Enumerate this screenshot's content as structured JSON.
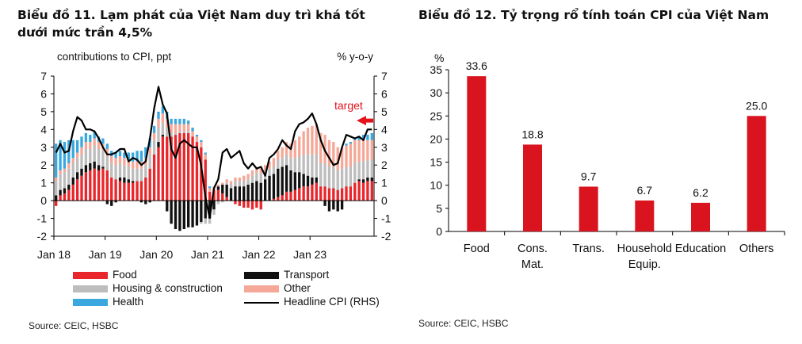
{
  "chart1": {
    "title": "Biểu đồ 11. Lạm phát của Việt Nam duy trì khá tốt dưới mức trần 4,5%",
    "left_axis_label": "contributions  to CPI, ppt",
    "right_axis_label": "% y-o-y",
    "target_label": "target",
    "source": "Source: CEIC, HSBC",
    "colors": {
      "food": "#e8262b",
      "transport": "#111111",
      "housing": "#bdbdbd",
      "other": "#f5a898",
      "health": "#3aa7df",
      "headline": "#000000",
      "target_arrow": "#e3121b"
    },
    "legend": [
      {
        "key": "food",
        "label": "Food"
      },
      {
        "key": "transport",
        "label": "Transport"
      },
      {
        "key": "housing",
        "label": "Housing & construction"
      },
      {
        "key": "other",
        "label": "Other"
      },
      {
        "key": "health",
        "label": "Health"
      },
      {
        "key": "headline",
        "label": "Headline CPI (RHS)"
      }
    ]
  },
  "chart2": {
    "title": "Biểu đồ 12. Tỷ trọng rổ tính toán CPI của Việt Nam",
    "source": "Source: CEIC, HSBC",
    "bar_color": "#d9141e"
  },
  "chart_data": [
    {
      "type": "bar",
      "subtype": "stacked bar + line",
      "title": "Biểu đồ 11. Lạm phát của Việt Nam duy trì khá tốt dưới mức trần 4,5%",
      "ylabel": "contributions  to CPI, ppt",
      "y2label": "% y-o-y",
      "ylim": [
        -2,
        7
      ],
      "y2lim": [
        -2,
        7
      ],
      "yticks": [
        "-2",
        "-1",
        "0",
        "1",
        "2",
        "3",
        "4",
        "5",
        "6",
        "7"
      ],
      "x_tick_labels": [
        "Jan 18",
        "Jan 19",
        "Jan 20",
        "Jan 21",
        "Jan 22",
        "Jan 23"
      ],
      "annotation": {
        "text": "target",
        "value": 4.5
      },
      "x": [
        "2018-01",
        "2018-02",
        "2018-03",
        "2018-04",
        "2018-05",
        "2018-06",
        "2018-07",
        "2018-08",
        "2018-09",
        "2018-10",
        "2018-11",
        "2018-12",
        "2019-01",
        "2019-02",
        "2019-03",
        "2019-04",
        "2019-05",
        "2019-06",
        "2019-07",
        "2019-08",
        "2019-09",
        "2019-10",
        "2019-11",
        "2019-12",
        "2020-01",
        "2020-02",
        "2020-03",
        "2020-04",
        "2020-05",
        "2020-06",
        "2020-07",
        "2020-08",
        "2020-09",
        "2020-10",
        "2020-11",
        "2020-12",
        "2021-01",
        "2021-02",
        "2021-03",
        "2021-04",
        "2021-05",
        "2021-06",
        "2021-07",
        "2021-08",
        "2021-09",
        "2021-10",
        "2021-11",
        "2021-12",
        "2022-01",
        "2022-02",
        "2022-03",
        "2022-04",
        "2022-05",
        "2022-06",
        "2022-07",
        "2022-08",
        "2022-09",
        "2022-10",
        "2022-11",
        "2022-12",
        "2023-01",
        "2023-02",
        "2023-03",
        "2023-04",
        "2023-05",
        "2023-06",
        "2023-07",
        "2023-08",
        "2023-09",
        "2023-10",
        "2023-11",
        "2023-12",
        "2024-01",
        "2024-02",
        "2024-03"
      ],
      "series": [
        {
          "name": "Food",
          "values": [
            -0.3,
            0.3,
            0.4,
            0.6,
            0.9,
            1.2,
            1.4,
            1.6,
            1.7,
            1.8,
            1.7,
            1.8,
            1.7,
            1.3,
            1.2,
            1.1,
            1.0,
            1.0,
            1.0,
            1.1,
            1.1,
            1.3,
            1.8,
            2.6,
            3.0,
            3.6,
            3.6,
            3.6,
            3.7,
            3.8,
            3.8,
            3.8,
            3.6,
            3.3,
            3.0,
            2.3,
            0.5,
            0.6,
            0.6,
            0.4,
            0.2,
            0.0,
            -0.2,
            -0.3,
            -0.4,
            -0.4,
            -0.5,
            -0.4,
            -0.5,
            0.0,
            0.0,
            0.1,
            0.2,
            0.3,
            0.5,
            0.5,
            0.6,
            0.7,
            0.8,
            0.8,
            0.9,
            1.0,
            0.8,
            0.8,
            0.7,
            0.7,
            0.6,
            0.7,
            0.8,
            0.8,
            1.0,
            1.1,
            1.0,
            1.1,
            1.1
          ]
        },
        {
          "name": "Transport",
          "values": [
            0.3,
            0.3,
            0.3,
            0.3,
            0.4,
            0.4,
            0.4,
            0.4,
            0.4,
            0.4,
            0.3,
            0.1,
            -0.2,
            -0.3,
            -0.1,
            0.2,
            0.3,
            0.2,
            0.1,
            0.0,
            -0.1,
            -0.2,
            -0.1,
            0.0,
            0.3,
            0.1,
            -0.6,
            -1.3,
            -1.6,
            -1.7,
            -1.6,
            -1.5,
            -1.5,
            -1.4,
            -1.2,
            -1.0,
            -1.0,
            -0.5,
            0.2,
            0.5,
            0.7,
            0.7,
            0.8,
            0.8,
            0.8,
            0.9,
            1.0,
            1.1,
            1.0,
            1.2,
            1.4,
            1.4,
            1.6,
            1.6,
            1.5,
            1.2,
            1.0,
            0.9,
            0.7,
            0.6,
            0.4,
            0.3,
            0.0,
            -0.3,
            -0.6,
            -0.5,
            -0.6,
            -0.5,
            0.0,
            0.0,
            0.0,
            0.1,
            0.2,
            0.2,
            0.2
          ]
        },
        {
          "name": "Housing & construction",
          "values": [
            0.8,
            0.9,
            0.9,
            0.9,
            0.8,
            0.8,
            0.8,
            0.9,
            0.8,
            0.9,
            0.9,
            0.9,
            0.8,
            0.8,
            0.8,
            0.8,
            0.7,
            0.7,
            0.7,
            0.7,
            0.7,
            0.7,
            0.8,
            0.8,
            0.8,
            0.7,
            0.5,
            0.2,
            0.1,
            0.1,
            0.1,
            0.1,
            0.0,
            0.0,
            -0.1,
            -0.3,
            -0.3,
            -0.3,
            -0.2,
            -0.1,
            0.1,
            0.2,
            0.3,
            0.3,
            0.3,
            0.3,
            0.4,
            0.5,
            0.5,
            0.5,
            0.4,
            0.4,
            0.5,
            0.5,
            0.6,
            0.7,
            0.8,
            0.9,
            1.1,
            1.2,
            1.3,
            1.3,
            1.3,
            1.3,
            1.2,
            1.2,
            1.1,
            1.1,
            1.1,
            1.1,
            1.1,
            1.0,
            1.0,
            1.0,
            1.0
          ]
        },
        {
          "name": "Other",
          "values": [
            0.2,
            0.2,
            0.2,
            0.3,
            0.3,
            0.3,
            0.4,
            0.4,
            0.4,
            0.4,
            0.4,
            0.4,
            0.4,
            0.4,
            0.4,
            0.4,
            0.4,
            0.4,
            0.4,
            0.4,
            0.4,
            0.4,
            0.4,
            0.4,
            0.5,
            0.5,
            0.5,
            0.5,
            0.5,
            0.4,
            0.4,
            0.4,
            0.3,
            0.3,
            0.3,
            0.3,
            0.2,
            0.2,
            0.1,
            0.1,
            0.2,
            0.2,
            0.2,
            0.2,
            0.3,
            0.3,
            0.3,
            0.3,
            0.3,
            0.3,
            0.4,
            0.5,
            0.5,
            0.6,
            0.7,
            0.8,
            1.0,
            1.1,
            1.3,
            1.5,
            1.6,
            1.7,
            1.7,
            1.6,
            1.5,
            1.4,
            1.3,
            1.2,
            1.2,
            1.3,
            1.3,
            1.2,
            1.2,
            1.1,
            1.1
          ]
        },
        {
          "name": "Health",
          "values": [
            1.9,
            1.7,
            1.5,
            1.3,
            1.0,
            0.7,
            0.6,
            0.5,
            0.4,
            0.4,
            0.3,
            0.3,
            0.3,
            0.3,
            0.3,
            0.3,
            0.3,
            0.4,
            0.5,
            0.6,
            0.6,
            0.6,
            0.5,
            0.4,
            0.4,
            0.4,
            0.4,
            0.3,
            0.3,
            0.3,
            0.3,
            0.2,
            0.2,
            0.1,
            0.1,
            0.1,
            0.1,
            0.0,
            0.0,
            0.0,
            0.0,
            0.0,
            0.0,
            0.0,
            0.0,
            0.0,
            0.0,
            0.0,
            0.0,
            0.0,
            0.0,
            0.0,
            0.0,
            0.0,
            0.0,
            0.0,
            0.0,
            0.0,
            0.0,
            0.0,
            0.0,
            0.0,
            0.0,
            0.0,
            0.0,
            0.0,
            0.0,
            0.0,
            0.1,
            0.1,
            0.1,
            0.2,
            0.3,
            0.3,
            0.4
          ]
        },
        {
          "name": "Headline CPI (RHS)",
          "type": "line",
          "values": [
            2.7,
            3.2,
            2.7,
            2.8,
            3.9,
            4.7,
            4.5,
            4.0,
            4.0,
            3.9,
            3.5,
            3.0,
            2.6,
            2.6,
            2.7,
            2.9,
            2.9,
            2.2,
            2.4,
            2.3,
            2.0,
            2.2,
            3.5,
            5.2,
            6.4,
            5.4,
            4.9,
            2.9,
            2.4,
            3.2,
            3.4,
            3.2,
            3.0,
            3.0,
            2.0,
            0.2,
            -0.97,
            0.7,
            1.2,
            2.7,
            2.9,
            2.4,
            2.6,
            2.8,
            2.1,
            1.8,
            2.1,
            1.8,
            1.9,
            1.4,
            2.4,
            2.6,
            2.9,
            3.4,
            3.1,
            2.9,
            3.9,
            4.3,
            4.4,
            4.6,
            4.9,
            4.3,
            3.4,
            2.8,
            2.4,
            2.0,
            2.1,
            3.0,
            3.7,
            3.6,
            3.5,
            3.6,
            3.4,
            4.0,
            4.0
          ]
        }
      ]
    },
    {
      "type": "bar",
      "title": "Biểu đồ 12. Tỷ trọng rổ tính toán CPI của Việt Nam",
      "ylabel": "%",
      "ylim": [
        0,
        35
      ],
      "yticks": [
        "0",
        "5",
        "10",
        "15",
        "20",
        "25",
        "30",
        "35"
      ],
      "categories": [
        [
          "Food"
        ],
        [
          "Cons.",
          "Mat."
        ],
        [
          "Trans."
        ],
        [
          "Household",
          "Equip."
        ],
        [
          "Education"
        ],
        [
          "Others"
        ]
      ],
      "values": [
        33.6,
        18.8,
        9.7,
        6.7,
        6.2,
        25.0
      ],
      "value_labels": [
        "33.6",
        "18.8",
        "9.7",
        "6.7",
        "6.2",
        "25.0"
      ]
    }
  ]
}
